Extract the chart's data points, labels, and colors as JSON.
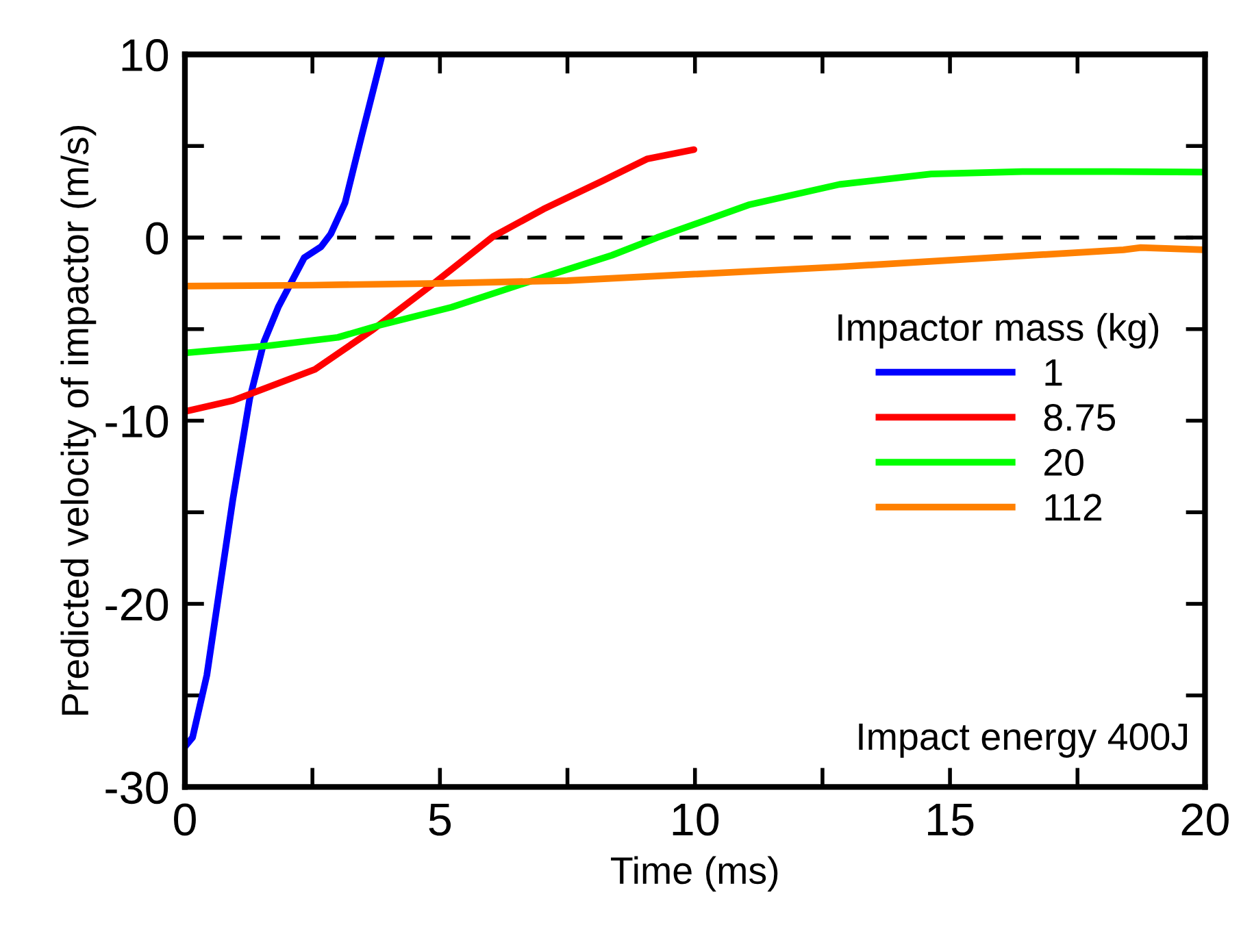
{
  "chart_data": {
    "type": "line",
    "xlabel": "Time (ms)",
    "ylabel": "Predicted velocity of impactor (m/s)",
    "legend_title": "Impactor mass (kg)",
    "legend": "right",
    "xlim": [
      0,
      20
    ],
    "ylim": [
      -30,
      10
    ],
    "xticks": [
      0,
      {
        "value": 2.5,
        "label": null
      },
      5,
      {
        "value": 7.5,
        "label": null
      },
      10,
      {
        "value": 12.5,
        "label": null
      },
      15,
      {
        "value": 17.5,
        "label": null
      },
      20
    ],
    "yticks": [
      -30,
      {
        "value": -25,
        "label": null
      },
      -20,
      {
        "value": -15,
        "label": null
      },
      -10,
      {
        "value": -5,
        "label": null
      },
      0,
      {
        "value": 5,
        "label": null
      },
      10
    ],
    "grid": false,
    "marker": "none",
    "line_style": "solid",
    "ref_lines": [
      {
        "axis": "y",
        "value": 0,
        "color": "#000000",
        "line_style": "dashed"
      }
    ],
    "annotations": [
      "Impact energy 400J"
    ],
    "series": [
      {
        "name": "1",
        "color": "#0000ff",
        "x": [
          0,
          0.15,
          0.43,
          0.94,
          1.27,
          1.55,
          1.83,
          2.34,
          2.67,
          2.86,
          3.14,
          3.46,
          3.87
        ],
        "values": [
          -27.8,
          -27.3,
          -23.9,
          -14.3,
          -8.8,
          -5.7,
          -3.8,
          -1.1,
          -0.5,
          0.2,
          1.9,
          5.5,
          10
        ]
      },
      {
        "name": "8.75",
        "color": "#ff0000",
        "x": [
          0,
          0.94,
          2.55,
          3.7,
          4.88,
          6.04,
          7.03,
          8.19,
          9.07,
          9.98
        ],
        "values": [
          -9.5,
          -8.9,
          -7.2,
          -5.0,
          -2.5,
          0.05,
          1.55,
          3.1,
          4.3,
          4.8
        ]
      },
      {
        "name": "20",
        "color": "#00ff00",
        "x": [
          0,
          1.66,
          3.0,
          3.8,
          5.23,
          6.76,
          8.37,
          9.26,
          11.05,
          12.83,
          14.63,
          16.42,
          18.2,
          20
        ],
        "values": [
          -6.3,
          -5.9,
          -5.45,
          -4.8,
          -3.8,
          -2.4,
          -0.97,
          0,
          1.78,
          2.9,
          3.47,
          3.6,
          3.6,
          3.57
        ]
      },
      {
        "name": "112",
        "color": "#ff8000",
        "x": [
          0,
          2.5,
          5,
          7.5,
          9.26,
          12.83,
          16.42,
          18.4,
          18.74,
          20
        ],
        "values": [
          -2.65,
          -2.6,
          -2.5,
          -2.35,
          -2.1,
          -1.6,
          -1.0,
          -0.67,
          -0.55,
          -0.67
        ]
      }
    ]
  }
}
